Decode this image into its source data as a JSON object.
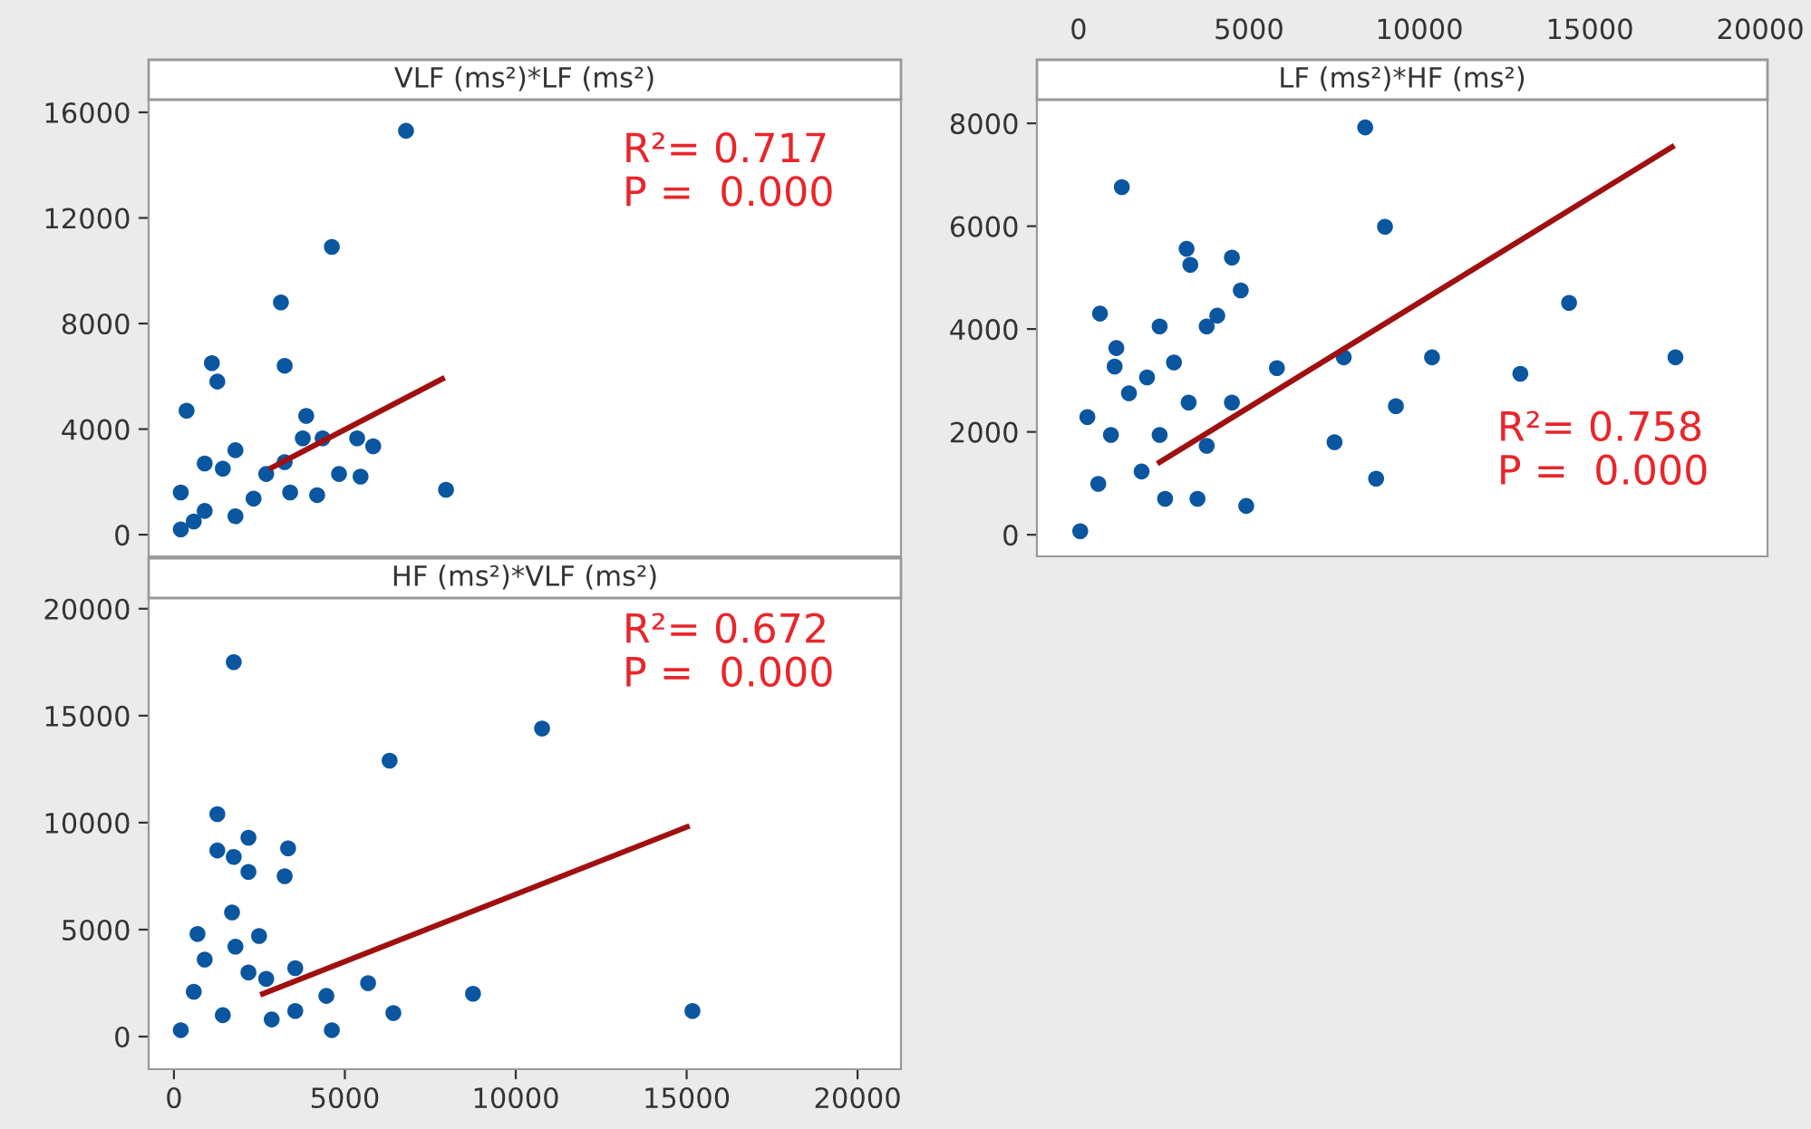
{
  "chart_data": [
    {
      "type": "scatter",
      "title": "VLF (ms²)*LF (ms²)",
      "xlim": [
        -740,
        21270
      ],
      "xticks": [
        0,
        5000,
        10000,
        15000,
        20000
      ],
      "ylim": [
        -820,
        16480
      ],
      "yticks": [
        0,
        4000,
        8000,
        12000,
        16000
      ],
      "tick_labels": "y",
      "grid": false,
      "legend": false,
      "annotations": [
        "R²= 0.717",
        "P =  0.000"
      ],
      "series": [
        {
          "marker": "circle",
          "color": "#0b56a0",
          "x": [
            6790,
            4620,
            3130,
            3240,
            1110,
            1270,
            370,
            3870,
            7960,
            4830,
            5460,
            5830,
            5360,
            3770,
            4350,
            1800,
            4190,
            3400,
            200,
            900,
            1800,
            2700,
            3240,
            900,
            2330,
            200,
            1430,
            580
          ],
          "values": [
            15300,
            10900,
            8800,
            6400,
            6500,
            5800,
            4700,
            4500,
            1700,
            2300,
            2200,
            3350,
            3650,
            3650,
            3650,
            3200,
            1500,
            1600,
            200,
            2700,
            700,
            2300,
            2750,
            900,
            1370,
            1600,
            2500,
            500
          ]
        },
        {
          "type": "line",
          "color": "#a01010",
          "x": [
            2860,
            7850
          ],
          "values": [
            2540,
            5900
          ]
        }
      ]
    },
    {
      "type": "scatter",
      "title": "LF (ms²)*HF (ms²)",
      "xlim": [
        -1220,
        20210
      ],
      "xticks": [
        0,
        5000,
        10000,
        15000,
        20000
      ],
      "ylim": [
        -420,
        8460
      ],
      "yticks": [
        0,
        2000,
        4000,
        6000,
        8000
      ],
      "grid": false,
      "legend": false,
      "annotations": [
        "R²= 0.758",
        "P =  0.000"
      ],
      "series": [
        {
          "marker": "circle",
          "color": "#0b56a0",
          "x": [
            8410,
            1270,
            8990,
            3170,
            3280,
            4500,
            4760,
            630,
            14390,
            17510,
            12960,
            10370,
            7780,
            5820,
            9310,
            7510,
            8730,
            4920,
            3490,
            3760,
            4070,
            2380,
            1110,
            1060,
            2800,
            2010,
            4500,
            3760,
            3230,
            260,
            2540,
            50,
            950,
            1480,
            2380,
            580,
            1850
          ],
          "values": [
            7920,
            6760,
            5990,
            5560,
            5250,
            5390,
            4750,
            4300,
            4510,
            3450,
            3130,
            3450,
            3450,
            3240,
            2500,
            1800,
            1090,
            560,
            700,
            4050,
            4260,
            4050,
            3630,
            3270,
            3350,
            3060,
            2570,
            1730,
            2570,
            2290,
            700,
            70,
            1940,
            2750,
            1940,
            990,
            1230
          ]
        },
        {
          "type": "line",
          "color": "#a01010",
          "x": [
            2380,
            17410
          ],
          "values": [
            1410,
            7540
          ]
        }
      ]
    },
    {
      "type": "scatter",
      "title": "HF (ms²)*VLF (ms²)",
      "xlim": [
        -740,
        21270
      ],
      "xticks": [
        0,
        5000,
        10000,
        15000,
        20000
      ],
      "ylim": [
        -1525,
        20500
      ],
      "yticks": [
        0,
        5000,
        10000,
        15000,
        20000
      ],
      "grid": false,
      "legend": false,
      "annotations": [
        "R²= 0.672",
        "P =  0.000"
      ],
      "series": [
        {
          "marker": "circle",
          "color": "#0b56a0",
          "x": [
            1750,
            10770,
            6310,
            1270,
            1270,
            2180,
            1750,
            2180,
            3340,
            3240,
            1700,
            690,
            2490,
            3550,
            5680,
            4460,
            8750,
            6420,
            15170,
            4620,
            3550,
            200,
            900,
            1800,
            2700,
            1430,
            2860,
            580,
            2180
          ],
          "values": [
            17500,
            14400,
            12900,
            10400,
            8700,
            9300,
            8400,
            7700,
            8800,
            7500,
            5800,
            4800,
            4700,
            3200,
            2500,
            1900,
            2000,
            1100,
            1200,
            300,
            1200,
            300,
            3600,
            4200,
            2700,
            1000,
            800,
            2100,
            3000
          ]
        },
        {
          "type": "line",
          "color": "#a01010",
          "x": [
            2600,
            15010
          ],
          "values": [
            2000,
            9800
          ]
        }
      ]
    }
  ]
}
